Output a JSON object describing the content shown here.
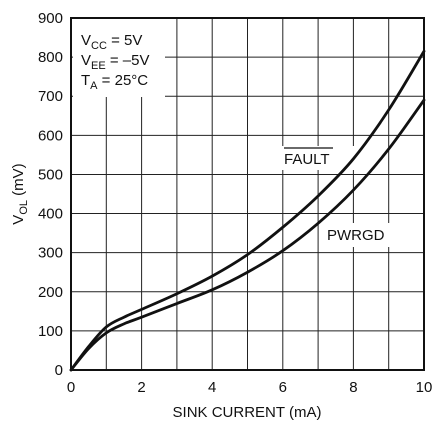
{
  "chart_data": {
    "type": "line",
    "title": "",
    "xlabel": "SINK CURRENT (mA)",
    "ylabel": {
      "main": "V",
      "sub": "OL",
      "rest": " (mV)"
    },
    "xlim": [
      0,
      10
    ],
    "ylim": [
      0,
      900
    ],
    "x_ticks": [
      "0",
      "2",
      "4",
      "6",
      "8",
      "10"
    ],
    "y_ticks": [
      "0",
      "100",
      "200",
      "300",
      "400",
      "500",
      "600",
      "700",
      "800",
      "900"
    ],
    "grid": true,
    "conditions": [
      {
        "main": "V",
        "sub": "CC",
        "rest": " = 5V"
      },
      {
        "main": "V",
        "sub": "EE",
        "rest": " = –5V"
      },
      {
        "main": "T",
        "sub": "A",
        "rest": " = 25°C"
      }
    ],
    "series": [
      {
        "name": "FAULT",
        "overline": true,
        "x": [
          0,
          0.5,
          1,
          1.5,
          2,
          3,
          4,
          5,
          6,
          7,
          8,
          9,
          10
        ],
        "y": [
          0,
          60,
          110,
          135,
          155,
          195,
          240,
          295,
          365,
          445,
          540,
          665,
          815
        ]
      },
      {
        "name": "PWRGD",
        "overline": false,
        "x": [
          0,
          0.5,
          1,
          1.5,
          2,
          3,
          4,
          5,
          6,
          7,
          8,
          9,
          10
        ],
        "y": [
          0,
          55,
          95,
          118,
          135,
          170,
          205,
          250,
          305,
          375,
          460,
          565,
          690
        ]
      }
    ]
  }
}
